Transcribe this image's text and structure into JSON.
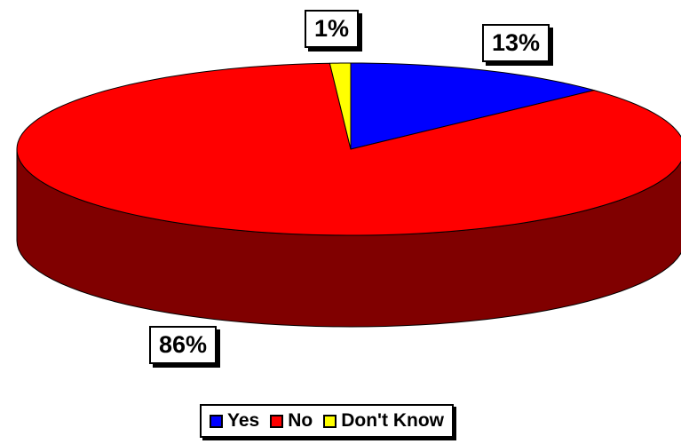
{
  "chart_data": {
    "type": "pie",
    "title": "",
    "start_direction": "top",
    "slices": [
      {
        "name": "Yes",
        "value": 13,
        "label": "13%",
        "color": "#0000ff",
        "side_color": "#000080"
      },
      {
        "name": "No",
        "value": 86,
        "label": "86%",
        "color": "#ff0000",
        "side_color": "#800000"
      },
      {
        "name": "Don't Know",
        "value": 1,
        "label": "1%",
        "color": "#ffff00",
        "side_color": "#808000"
      }
    ],
    "legend_position": "bottom",
    "style": "3d"
  }
}
